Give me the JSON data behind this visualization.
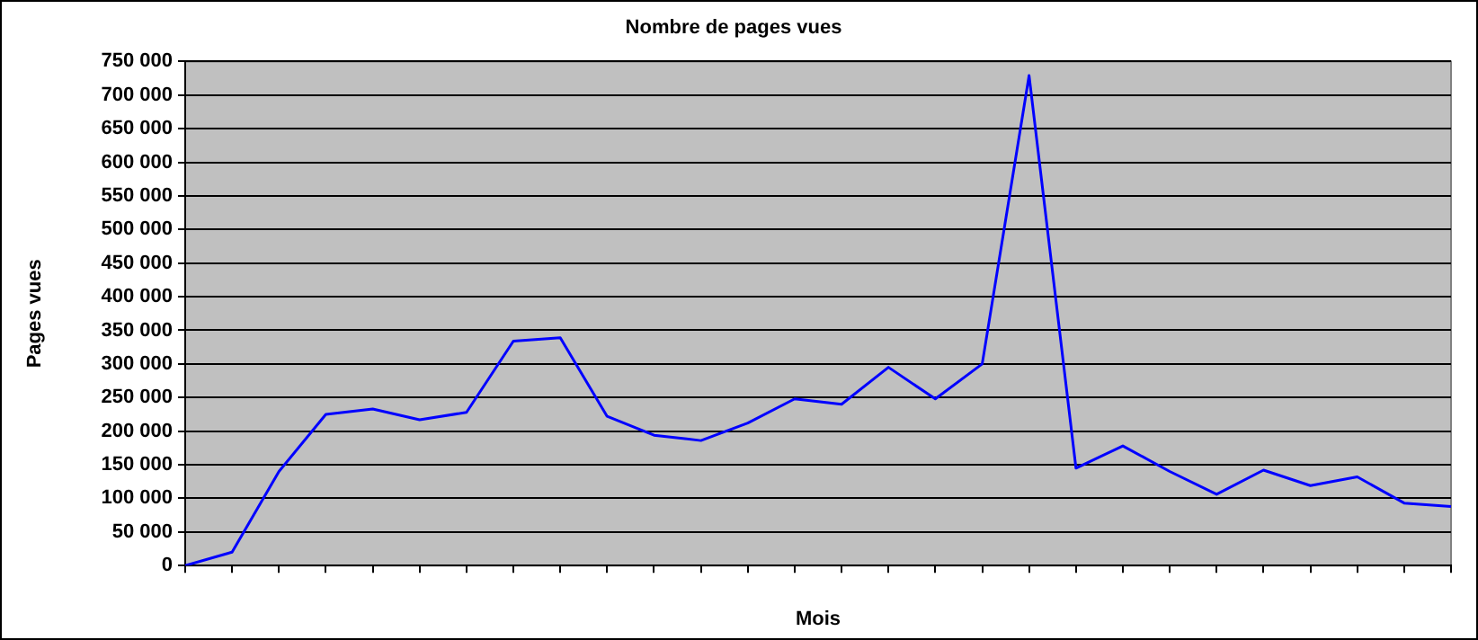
{
  "chart_data": {
    "type": "line",
    "title": "Nombre de pages vues",
    "xlabel": "Mois",
    "ylabel": "Pages vues",
    "categories": [
      null,
      null,
      null,
      null,
      null,
      null,
      null,
      null,
      null,
      null,
      null,
      null,
      null,
      null,
      null,
      null,
      null,
      null,
      null,
      null,
      null,
      null,
      null,
      null,
      null,
      null,
      null,
      null
    ],
    "series": [
      {
        "color": "#0000ff",
        "values": [
          0,
          20000,
          140000,
          225000,
          233000,
          217000,
          228000,
          334000,
          339000,
          222000,
          194000,
          186000,
          212000,
          248000,
          240000,
          295000,
          248000,
          300000,
          729000,
          145000,
          178000,
          140000,
          106000,
          142000,
          119000,
          132000,
          93000,
          88000
        ]
      }
    ],
    "ylim": [
      0,
      750000
    ],
    "yticks": [
      {
        "value": 0,
        "label": "0"
      },
      {
        "value": 50000,
        "label": "50 000"
      },
      {
        "value": 100000,
        "label": "100 000"
      },
      {
        "value": 150000,
        "label": "150 000"
      },
      {
        "value": 200000,
        "label": "200 000"
      },
      {
        "value": 250000,
        "label": "250 000"
      },
      {
        "value": 300000,
        "label": "300 000"
      },
      {
        "value": 350000,
        "label": "350 000"
      },
      {
        "value": 400000,
        "label": "400 000"
      },
      {
        "value": 450000,
        "label": "450 000"
      },
      {
        "value": 500000,
        "label": "500 000"
      },
      {
        "value": 550000,
        "label": "550 000"
      },
      {
        "value": 600000,
        "label": "600 000"
      },
      {
        "value": 650000,
        "label": "650 000"
      },
      {
        "value": 700000,
        "label": "700 000"
      },
      {
        "value": 750000,
        "label": "750 000"
      }
    ],
    "grid": "y",
    "legend": false,
    "marker": "none",
    "line_style": "solid"
  }
}
